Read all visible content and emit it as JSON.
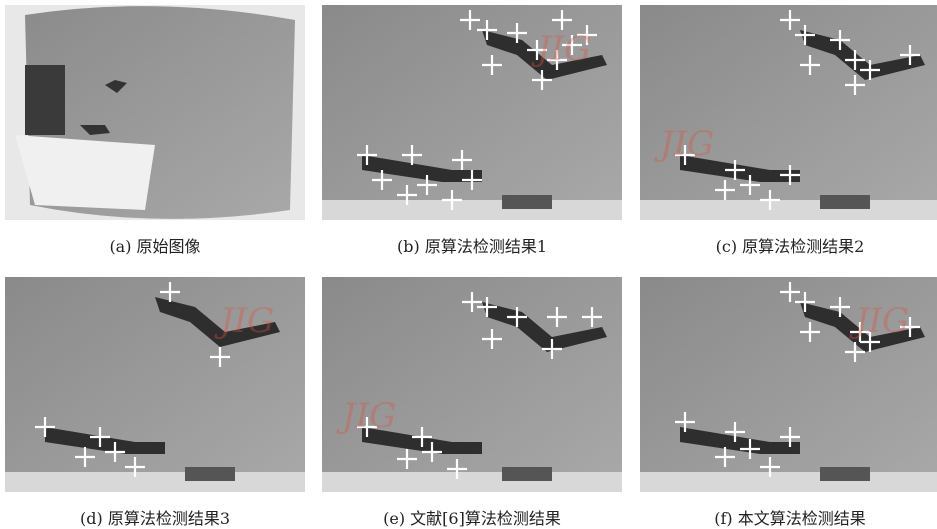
{
  "figure": {
    "watermark": "JIG",
    "panels": [
      {
        "caption": "(a) 原始图像"
      },
      {
        "caption": "(b) 原算法检测结果1"
      },
      {
        "caption": "(c) 原算法检测结果2"
      },
      {
        "caption": "(d) 原算法检测结果3"
      },
      {
        "caption": "(e) 文献[6]算法检测结果"
      },
      {
        "caption": "(f) 本文算法检测结果"
      }
    ]
  }
}
